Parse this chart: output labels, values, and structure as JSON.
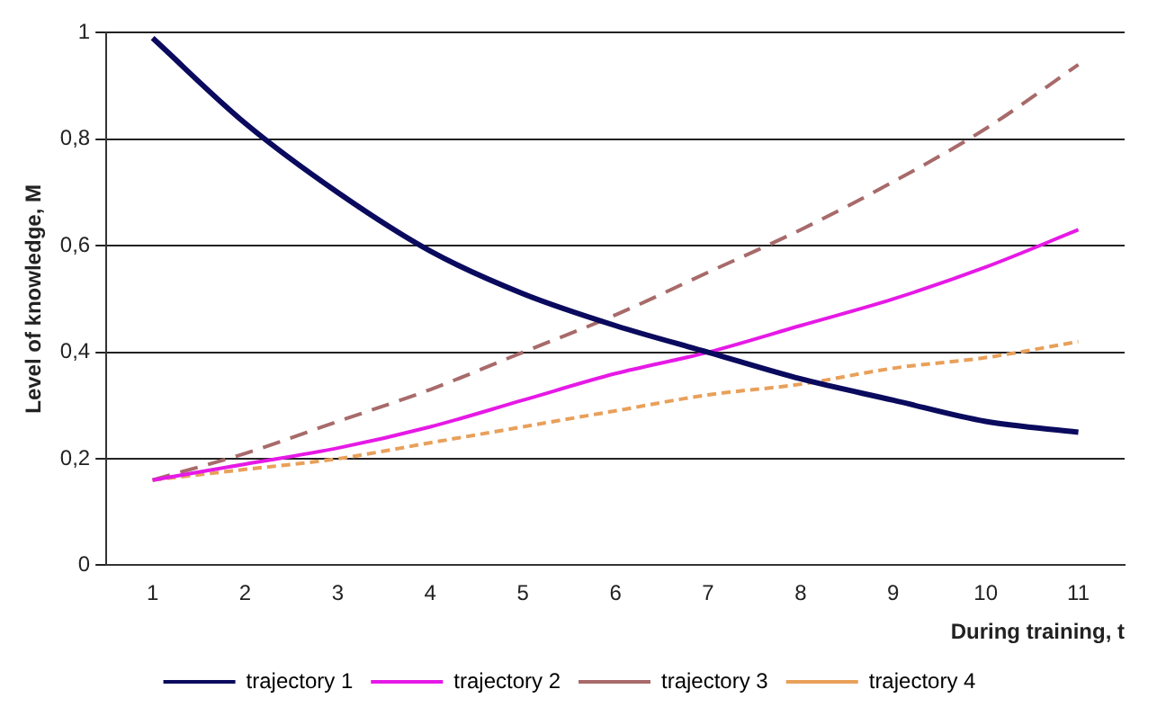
{
  "chart_data": {
    "type": "line",
    "xlabel": "During training, t",
    "ylabel": "Level of knowledge, M",
    "categories": [
      "1",
      "2",
      "3",
      "4",
      "5",
      "6",
      "7",
      "8",
      "9",
      "10",
      "11"
    ],
    "series": [
      {
        "name": "trajectory 1",
        "color": "#0a0a5e",
        "line_style": "solid",
        "values": [
          0.99,
          0.83,
          0.7,
          0.59,
          0.51,
          0.45,
          0.4,
          0.35,
          0.31,
          0.27,
          0.25
        ]
      },
      {
        "name": "trajectory 2",
        "color": "#e619e6",
        "line_style": "solid",
        "values": [
          0.16,
          0.19,
          0.22,
          0.26,
          0.31,
          0.36,
          0.4,
          0.45,
          0.5,
          0.56,
          0.63
        ]
      },
      {
        "name": "trajectory 3",
        "color": "#a86a6a",
        "line_style": "dashed",
        "values": [
          0.16,
          0.21,
          0.27,
          0.33,
          0.4,
          0.47,
          0.55,
          0.63,
          0.72,
          0.82,
          0.94
        ]
      },
      {
        "name": "trajectory 4",
        "color": "#e8a05a",
        "line_style": "dotted",
        "values": [
          0.16,
          0.18,
          0.2,
          0.23,
          0.26,
          0.29,
          0.32,
          0.34,
          0.37,
          0.39,
          0.42
        ]
      }
    ],
    "ylim": [
      0,
      1
    ],
    "yticks": [
      0,
      {
        "value": 0.2,
        "label": "0,2"
      },
      {
        "value": 0.4,
        "label": "0,4"
      },
      {
        "value": 0.6,
        "label": "0,6"
      },
      {
        "value": 0.8,
        "label": "0,8"
      },
      1
    ],
    "grid": "y",
    "legend": "bottom",
    "marker": "none"
  }
}
